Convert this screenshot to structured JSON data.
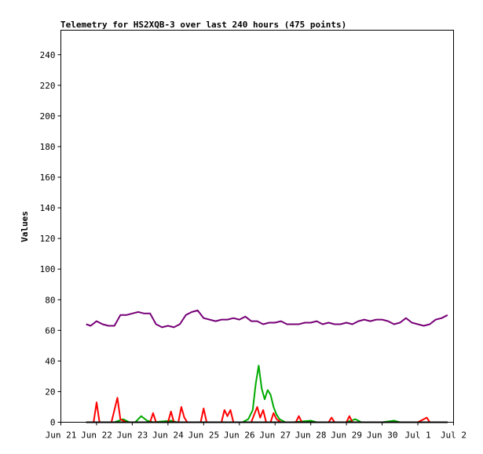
{
  "chart_data": {
    "type": "line",
    "title": "Telemetry for HS2XQB-3 over last 240 hours (475 points)",
    "xlabel": "",
    "ylabel": "Values",
    "ylim": [
      0,
      256
    ],
    "yticks": [
      0,
      20,
      40,
      60,
      80,
      100,
      120,
      140,
      160,
      180,
      200,
      220,
      240
    ],
    "xlim": [
      "2024-06-21T00:00",
      "2024-07-02T00:00"
    ],
    "xticks": [
      {
        "t": "2024-06-21T00:00",
        "label": "Jun 21"
      },
      {
        "t": "2024-06-22T00:00",
        "label": "Jun 22"
      },
      {
        "t": "2024-06-23T00:00",
        "label": "Jun 23"
      },
      {
        "t": "2024-06-24T00:00",
        "label": "Jun 24"
      },
      {
        "t": "2024-06-25T00:00",
        "label": "Jun 25"
      },
      {
        "t": "2024-06-26T00:00",
        "label": "Jun 26"
      },
      {
        "t": "2024-06-27T00:00",
        "label": "Jun 27"
      },
      {
        "t": "2024-06-28T00:00",
        "label": "Jun 28"
      },
      {
        "t": "2024-06-29T00:00",
        "label": "Jun 29"
      },
      {
        "t": "2024-06-30T00:00",
        "label": "Jun 30"
      },
      {
        "t": "2024-07-01T00:00",
        "label": "Jul 1"
      },
      {
        "t": "2024-07-02T00:00",
        "label": "Jul 2"
      }
    ],
    "grid": false,
    "legend": "none",
    "series": [
      {
        "color": "#770077",
        "points": [
          [
            "2024-06-21T17:00",
            64
          ],
          [
            "2024-06-21T20:00",
            63
          ],
          [
            "2024-06-22T00:00",
            66
          ],
          [
            "2024-06-22T04:00",
            64
          ],
          [
            "2024-06-22T08:00",
            63
          ],
          [
            "2024-06-22T12:00",
            63
          ],
          [
            "2024-06-22T16:00",
            70
          ],
          [
            "2024-06-22T20:00",
            70
          ],
          [
            "2024-06-23T00:00",
            71
          ],
          [
            "2024-06-23T04:00",
            72
          ],
          [
            "2024-06-23T08:00",
            71
          ],
          [
            "2024-06-23T12:00",
            71
          ],
          [
            "2024-06-23T16:00",
            64
          ],
          [
            "2024-06-23T20:00",
            62
          ],
          [
            "2024-06-24T00:00",
            63
          ],
          [
            "2024-06-24T04:00",
            62
          ],
          [
            "2024-06-24T08:00",
            64
          ],
          [
            "2024-06-24T12:00",
            70
          ],
          [
            "2024-06-24T16:00",
            72
          ],
          [
            "2024-06-24T20:00",
            73
          ],
          [
            "2024-06-25T00:00",
            68
          ],
          [
            "2024-06-25T04:00",
            67
          ],
          [
            "2024-06-25T08:00",
            66
          ],
          [
            "2024-06-25T12:00",
            67
          ],
          [
            "2024-06-25T16:00",
            67
          ],
          [
            "2024-06-25T20:00",
            68
          ],
          [
            "2024-06-26T00:00",
            67
          ],
          [
            "2024-06-26T04:00",
            69
          ],
          [
            "2024-06-26T08:00",
            66
          ],
          [
            "2024-06-26T12:00",
            66
          ],
          [
            "2024-06-26T16:00",
            64
          ],
          [
            "2024-06-26T20:00",
            65
          ],
          [
            "2024-06-27T00:00",
            65
          ],
          [
            "2024-06-27T04:00",
            66
          ],
          [
            "2024-06-27T08:00",
            64
          ],
          [
            "2024-06-27T12:00",
            64
          ],
          [
            "2024-06-27T16:00",
            64
          ],
          [
            "2024-06-27T20:00",
            65
          ],
          [
            "2024-06-28T00:00",
            65
          ],
          [
            "2024-06-28T04:00",
            66
          ],
          [
            "2024-06-28T08:00",
            64
          ],
          [
            "2024-06-28T12:00",
            65
          ],
          [
            "2024-06-28T16:00",
            64
          ],
          [
            "2024-06-28T20:00",
            64
          ],
          [
            "2024-06-29T00:00",
            65
          ],
          [
            "2024-06-29T04:00",
            64
          ],
          [
            "2024-06-29T08:00",
            66
          ],
          [
            "2024-06-29T12:00",
            67
          ],
          [
            "2024-06-29T16:00",
            66
          ],
          [
            "2024-06-29T20:00",
            67
          ],
          [
            "2024-06-30T00:00",
            67
          ],
          [
            "2024-06-30T04:00",
            66
          ],
          [
            "2024-06-30T08:00",
            64
          ],
          [
            "2024-06-30T12:00",
            65
          ],
          [
            "2024-06-30T16:00",
            68
          ],
          [
            "2024-06-30T20:00",
            65
          ],
          [
            "2024-07-01T00:00",
            64
          ],
          [
            "2024-07-01T04:00",
            63
          ],
          [
            "2024-07-01T08:00",
            64
          ],
          [
            "2024-07-01T12:00",
            67
          ],
          [
            "2024-07-01T16:00",
            68
          ],
          [
            "2024-07-01T20:00",
            70
          ]
        ]
      },
      {
        "color": "#00aa00",
        "points": [
          [
            "2024-06-21T17:00",
            0
          ],
          [
            "2024-06-22T12:00",
            0
          ],
          [
            "2024-06-22T18:00",
            2
          ],
          [
            "2024-06-22T22:00",
            0
          ],
          [
            "2024-06-23T02:00",
            0
          ],
          [
            "2024-06-23T06:00",
            4
          ],
          [
            "2024-06-23T10:00",
            1
          ],
          [
            "2024-06-23T14:00",
            0
          ],
          [
            "2024-06-24T02:00",
            1
          ],
          [
            "2024-06-24T06:00",
            0
          ],
          [
            "2024-06-25T00:00",
            0
          ],
          [
            "2024-06-25T18:00",
            0
          ],
          [
            "2024-06-26T02:00",
            0
          ],
          [
            "2024-06-26T06:00",
            2
          ],
          [
            "2024-06-26T09:00",
            8
          ],
          [
            "2024-06-26T11:00",
            25
          ],
          [
            "2024-06-26T13:00",
            37
          ],
          [
            "2024-06-26T15:00",
            22
          ],
          [
            "2024-06-26T17:00",
            15
          ],
          [
            "2024-06-26T19:00",
            21
          ],
          [
            "2024-06-26T21:00",
            18
          ],
          [
            "2024-06-26T23:00",
            10
          ],
          [
            "2024-06-27T01:00",
            5
          ],
          [
            "2024-06-27T03:00",
            2
          ],
          [
            "2024-06-27T07:00",
            0
          ],
          [
            "2024-06-27T12:00",
            0
          ],
          [
            "2024-06-28T00:00",
            1
          ],
          [
            "2024-06-28T04:00",
            0
          ],
          [
            "2024-06-29T00:00",
            0
          ],
          [
            "2024-06-29T06:00",
            2
          ],
          [
            "2024-06-29T10:00",
            0
          ],
          [
            "2024-06-30T00:00",
            0
          ],
          [
            "2024-06-30T08:00",
            1
          ],
          [
            "2024-06-30T12:00",
            0
          ],
          [
            "2024-07-01T00:00",
            0
          ],
          [
            "2024-07-01T20:00",
            0
          ]
        ]
      },
      {
        "color": "#ff0000",
        "points": [
          [
            "2024-06-21T17:00",
            0
          ],
          [
            "2024-06-21T22:00",
            0
          ],
          [
            "2024-06-22T00:00",
            13
          ],
          [
            "2024-06-22T02:00",
            0
          ],
          [
            "2024-06-22T10:00",
            0
          ],
          [
            "2024-06-22T13:00",
            12
          ],
          [
            "2024-06-22T14:00",
            16
          ],
          [
            "2024-06-22T16:00",
            2
          ],
          [
            "2024-06-22T20:00",
            0
          ],
          [
            "2024-06-23T12:00",
            0
          ],
          [
            "2024-06-23T14:00",
            6
          ],
          [
            "2024-06-23T16:00",
            0
          ],
          [
            "2024-06-24T00:00",
            0
          ],
          [
            "2024-06-24T02:00",
            7
          ],
          [
            "2024-06-24T04:00",
            0
          ],
          [
            "2024-06-24T07:00",
            0
          ],
          [
            "2024-06-24T09:00",
            10
          ],
          [
            "2024-06-24T11:00",
            3
          ],
          [
            "2024-06-24T13:00",
            0
          ],
          [
            "2024-06-24T22:00",
            0
          ],
          [
            "2024-06-25T00:00",
            9
          ],
          [
            "2024-06-25T02:00",
            0
          ],
          [
            "2024-06-25T12:00",
            0
          ],
          [
            "2024-06-25T14:00",
            8
          ],
          [
            "2024-06-25T16:00",
            4
          ],
          [
            "2024-06-25T18:00",
            8
          ],
          [
            "2024-06-25T20:00",
            0
          ],
          [
            "2024-06-26T08:00",
            0
          ],
          [
            "2024-06-26T10:00",
            5
          ],
          [
            "2024-06-26T12:00",
            10
          ],
          [
            "2024-06-26T14:00",
            3
          ],
          [
            "2024-06-26T16:00",
            8
          ],
          [
            "2024-06-26T18:00",
            0
          ],
          [
            "2024-06-26T21:00",
            0
          ],
          [
            "2024-06-26T23:00",
            6
          ],
          [
            "2024-06-27T01:00",
            2
          ],
          [
            "2024-06-27T04:00",
            0
          ],
          [
            "2024-06-27T14:00",
            0
          ],
          [
            "2024-06-27T16:00",
            4
          ],
          [
            "2024-06-27T18:00",
            0
          ],
          [
            "2024-06-28T12:00",
            0
          ],
          [
            "2024-06-28T14:00",
            3
          ],
          [
            "2024-06-28T16:00",
            0
          ],
          [
            "2024-06-29T00:00",
            0
          ],
          [
            "2024-06-29T02:00",
            4
          ],
          [
            "2024-06-29T04:00",
            0
          ],
          [
            "2024-07-01T00:00",
            0
          ],
          [
            "2024-07-01T06:00",
            3
          ],
          [
            "2024-07-01T08:00",
            0
          ],
          [
            "2024-07-01T20:00",
            0
          ]
        ]
      },
      {
        "color": "#000000",
        "points": [
          [
            "2024-06-21T17:00",
            0
          ],
          [
            "2024-07-01T20:00",
            0
          ]
        ]
      }
    ]
  }
}
